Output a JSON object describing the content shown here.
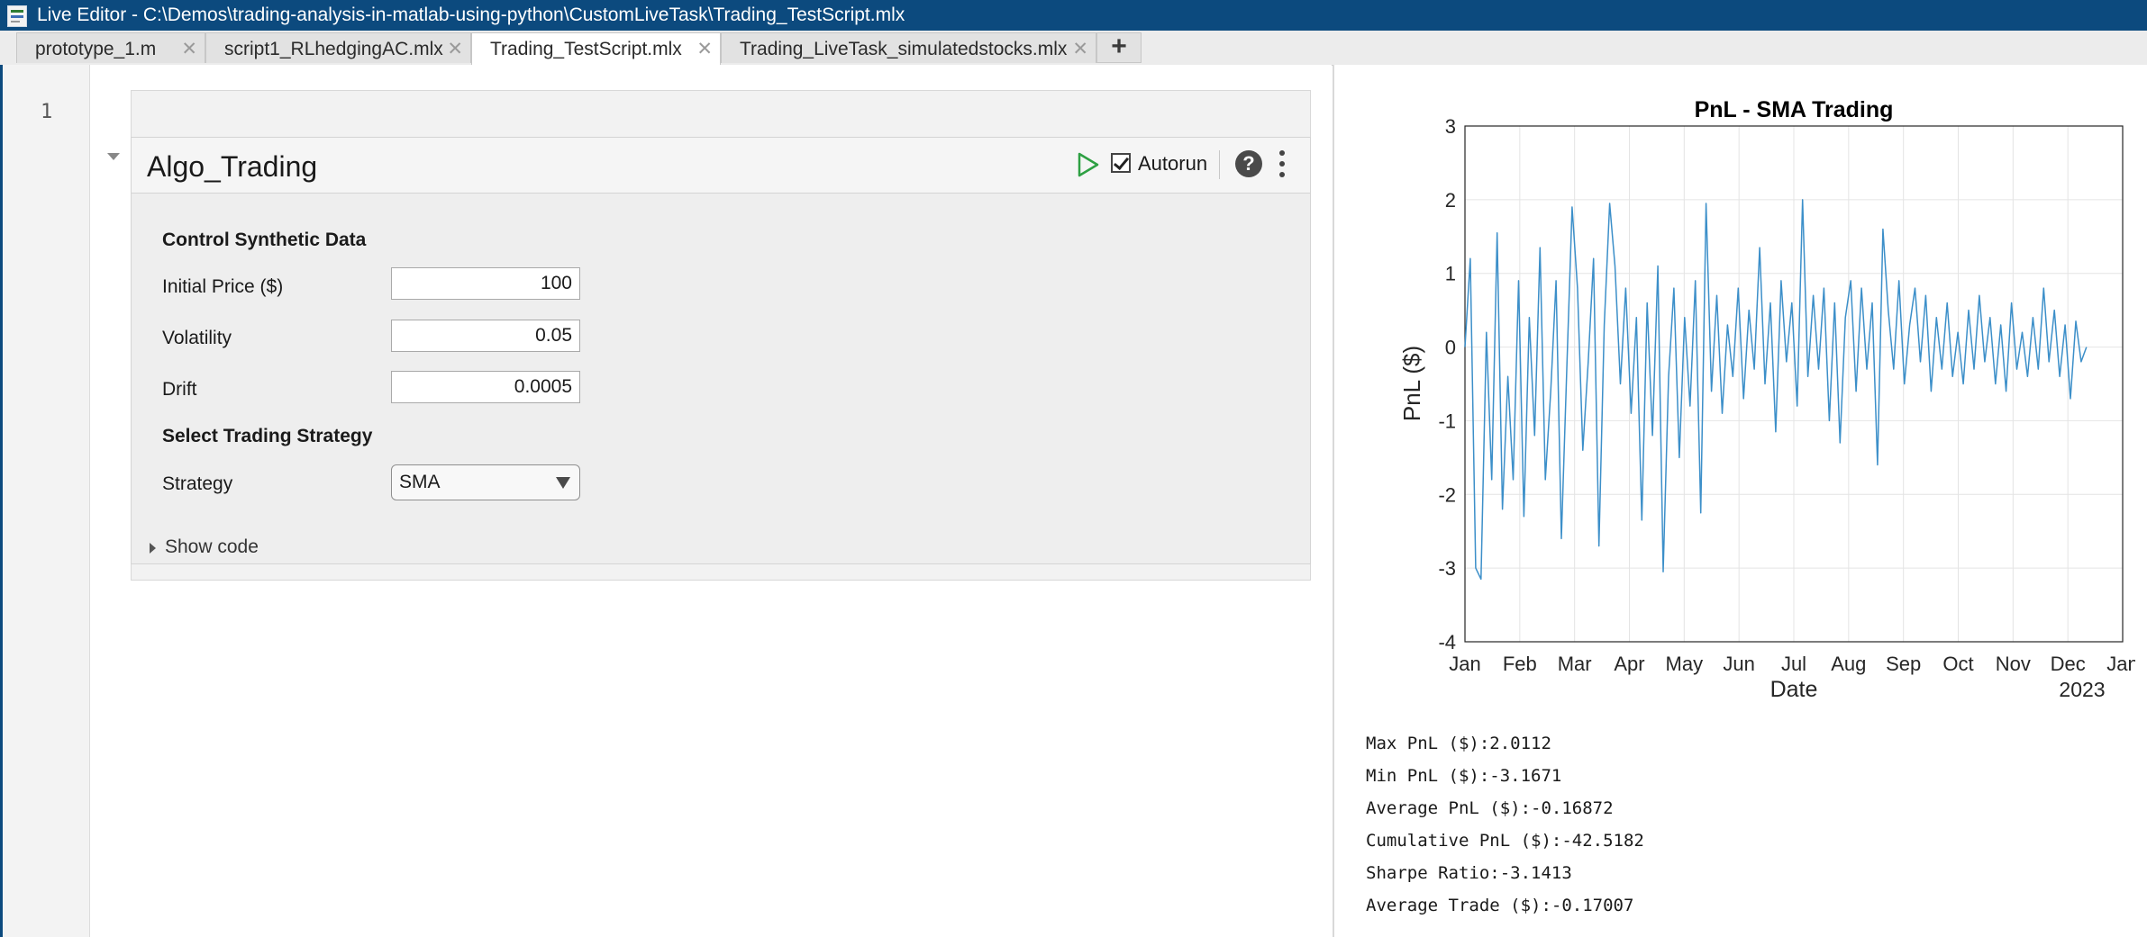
{
  "window": {
    "title": "Live Editor - C:\\Demos\\trading-analysis-in-matlab-using-python\\CustomLiveTask\\Trading_TestScript.mlx",
    "icon": "live-editor-app-icon"
  },
  "tabs": [
    {
      "label": "prototype_1.m",
      "close": "✕",
      "active": false
    },
    {
      "label": "script1_RLhedgingAC.mlx",
      "close": "✕",
      "active": false
    },
    {
      "label": "Trading_TestScript.mlx",
      "close": "✕",
      "active": true
    },
    {
      "label": "Trading_LiveTask_simulatedstocks.mlx",
      "close": "✕",
      "active": false
    }
  ],
  "tab_add": "+",
  "editor": {
    "line_number": "1"
  },
  "task": {
    "title": "Algo_Trading",
    "autorun_label": "Autorun",
    "autorun_checked": true,
    "help": "?",
    "section1": "Control Synthetic Data",
    "fields": [
      {
        "label": "Initial Price ($)",
        "value": "100"
      },
      {
        "label": "Volatility",
        "value": "0.05"
      },
      {
        "label": "Drift",
        "value": "0.0005"
      }
    ],
    "section2": "Select Trading Strategy",
    "strategy_label": "Strategy",
    "strategy_value": "SMA",
    "show_code": "Show code"
  },
  "chart_data": {
    "type": "line",
    "title": "PnL - SMA Trading",
    "xlabel": "Date",
    "ylabel": "PnL ($)",
    "ylim": [
      -4,
      3
    ],
    "yticks": [
      "3",
      "2",
      "1",
      "0",
      "-1",
      "-2",
      "-3",
      "-4"
    ],
    "xticks": [
      "Jan",
      "Feb",
      "Mar",
      "Apr",
      "May",
      "Jun",
      "Jul",
      "Aug",
      "Sep",
      "Oct",
      "Nov",
      "Dec",
      "Jan"
    ],
    "xtick_secondary": "2023",
    "grid": true,
    "color": "#3c8fc9",
    "series": [
      {
        "values": [
          0.0,
          1.2,
          -3.0,
          -3.15,
          0.2,
          -1.8,
          1.55,
          -2.2,
          -0.4,
          -1.8,
          0.9,
          -2.3,
          0.4,
          -1.2,
          1.35,
          -1.8,
          -0.6,
          0.9,
          -2.6,
          -0.3,
          1.9,
          0.8,
          -1.4,
          -0.2,
          1.2,
          -2.7,
          0.3,
          1.95,
          1.1,
          -0.5,
          0.8,
          -0.9,
          0.4,
          -2.35,
          0.6,
          -1.2,
          1.1,
          -3.05,
          -0.4,
          0.8,
          -1.5,
          0.4,
          -0.8,
          0.9,
          -2.25,
          1.95,
          -0.6,
          0.7,
          -0.9,
          0.3,
          -0.4,
          0.8,
          -0.7,
          0.5,
          -0.3,
          1.35,
          -0.5,
          0.6,
          -1.15,
          0.9,
          -0.2,
          0.6,
          -0.8,
          2.0,
          -0.4,
          0.7,
          -0.3,
          0.8,
          -1.0,
          0.6,
          -1.3,
          0.4,
          0.9,
          -0.6,
          0.8,
          -0.3,
          0.6,
          -1.6,
          1.6,
          0.5,
          -0.3,
          0.9,
          -0.5,
          0.3,
          0.8,
          -0.2,
          0.7,
          -0.6,
          0.4,
          -0.3,
          0.6,
          -0.4,
          0.2,
          -0.5,
          0.5,
          -0.3,
          0.7,
          -0.2,
          0.4,
          -0.5,
          0.3,
          -0.6,
          0.6,
          -0.3,
          0.2,
          -0.4,
          0.4,
          -0.3,
          0.8,
          -0.2,
          0.5,
          -0.4,
          0.3,
          -0.7,
          0.35,
          -0.2,
          0.0
        ]
      }
    ]
  },
  "stats": [
    "Max PnL ($):2.0112",
    "Min PnL ($):-3.1671",
    "Average PnL ($):-0.16872",
    "Cumulative PnL ($):-42.5182",
    "Sharpe Ratio:-3.1413",
    "Average Trade ($):-0.17007"
  ]
}
